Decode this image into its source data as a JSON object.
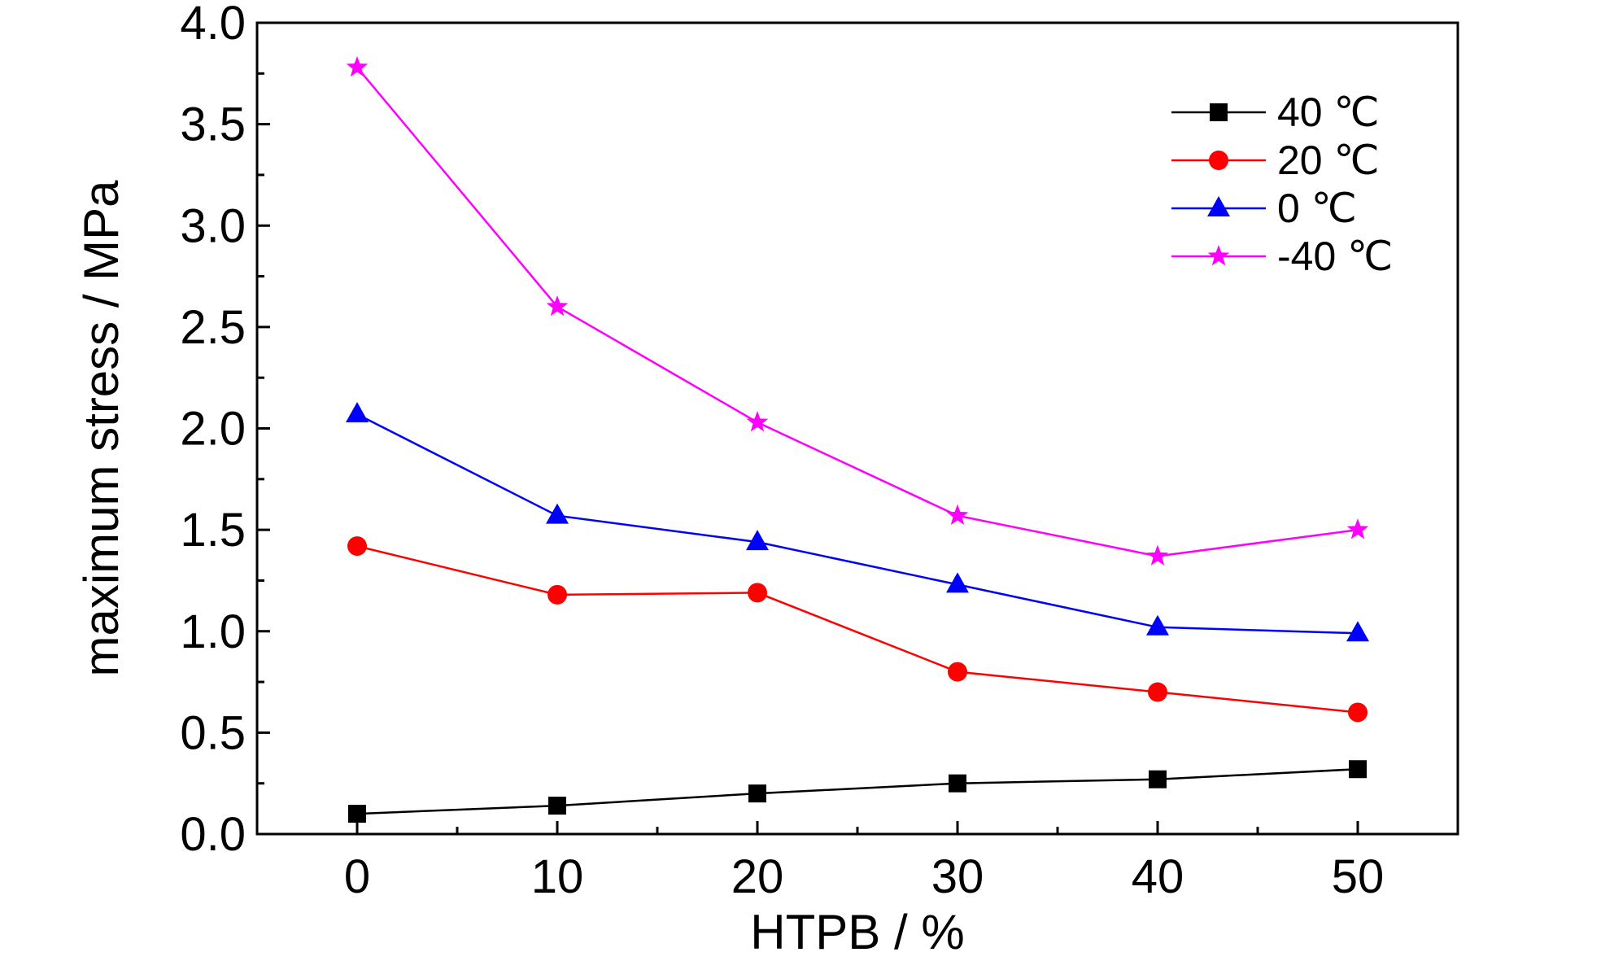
{
  "chart_data": {
    "type": "line",
    "title": "",
    "xlabel": "HTPB / %",
    "ylabel": "maximum stress / MPa",
    "xlim": [
      -5,
      55
    ],
    "ylim": [
      0.0,
      4.0
    ],
    "x_ticks": [
      0,
      10,
      20,
      30,
      40,
      50
    ],
    "x_tick_labels": [
      "0",
      "10",
      "20",
      "30",
      "40",
      "50"
    ],
    "y_ticks": [
      0.0,
      0.5,
      1.0,
      1.5,
      2.0,
      2.5,
      3.0,
      3.5,
      4.0
    ],
    "y_tick_labels": [
      "0.0",
      "0.5",
      "1.0",
      "1.5",
      "2.0",
      "2.5",
      "3.0",
      "3.5",
      "4.0"
    ],
    "grid": false,
    "legend_position": "top-right",
    "x": [
      0,
      10,
      20,
      30,
      40,
      50
    ],
    "series": [
      {
        "name": "40 ℃",
        "color": "#000000",
        "marker": "square",
        "values": [
          0.1,
          0.14,
          0.2,
          0.25,
          0.27,
          0.32
        ]
      },
      {
        "name": "20 ℃",
        "color": "#ff0000",
        "marker": "circle",
        "values": [
          1.42,
          1.18,
          1.19,
          0.8,
          0.7,
          0.6
        ]
      },
      {
        "name": "0 ℃",
        "color": "#0000ff",
        "marker": "triangle",
        "values": [
          2.07,
          1.57,
          1.44,
          1.23,
          1.02,
          0.99
        ]
      },
      {
        "name": "-40 ℃",
        "color": "#ff00ff",
        "marker": "star",
        "values": [
          3.78,
          2.6,
          2.03,
          1.57,
          1.37,
          1.5
        ]
      }
    ]
  }
}
